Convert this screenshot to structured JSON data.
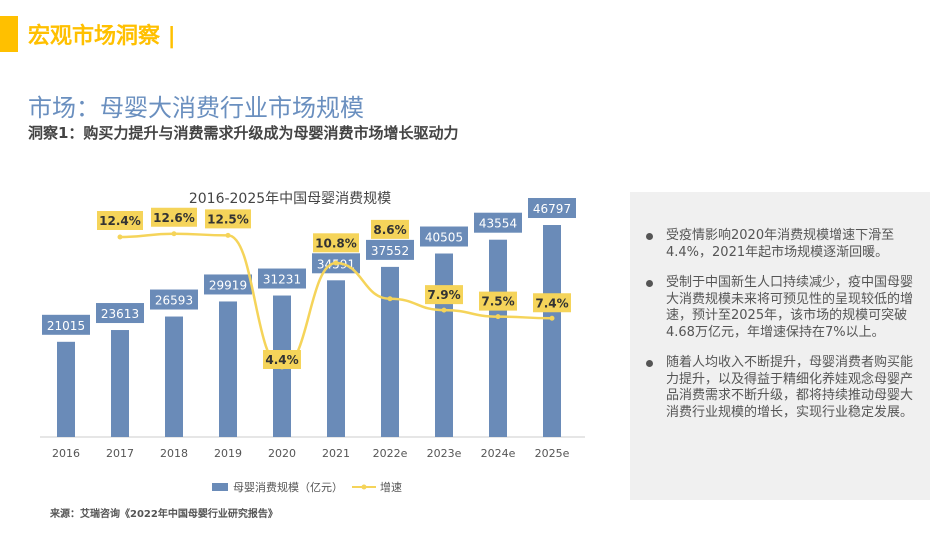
{
  "header": {
    "section": "宏观市场洞察 |",
    "title": "市场：母婴大消费行业市场规模",
    "subtitle": "洞察1：购买力提升与消费需求升级成为母婴消费市场增长驱动力"
  },
  "chart_data": {
    "type": "bar",
    "title": "2016-2025年中国母婴消费规模",
    "categories": [
      "2016",
      "2017",
      "2018",
      "2019",
      "2020",
      "2021",
      "2022e",
      "2023e",
      "2024e",
      "2025e"
    ],
    "series": [
      {
        "name": "母婴消费规模（亿元）",
        "type": "bar",
        "values": [
          21015,
          23613,
          26593,
          29919,
          31231,
          34591,
          37552,
          40505,
          43554,
          46797
        ],
        "color": "#6a8bb8"
      },
      {
        "name": "增速",
        "type": "line",
        "values": [
          null,
          12.4,
          12.6,
          12.5,
          4.4,
          10.8,
          8.6,
          7.9,
          7.5,
          7.4
        ],
        "labels": [
          "",
          "12.4%",
          "12.6%",
          "12.5%",
          "4.4%",
          "10.8%",
          "8.6%",
          "7.9%",
          "7.5%",
          "7.4%"
        ],
        "color": "#f5d45a"
      }
    ],
    "legend": "bottom",
    "grid": false
  },
  "insights": [
    "受疫情影响2020年消费规模增速下滑至4.4%，2021年起市场规模逐渐回暖。",
    "受制于中国新生人口持续减少，疫中国母婴大消费规模未来将可预见性的呈现较低的增速，预计至2025年，该市场的规模可突破4.68万亿元，年增速保持在7%以上。",
    "随着人均收入不断提升，母婴消费者购买能力提升，以及得益于精细化养娃观念母婴产品消费需求不断升级，都将持续推动母婴大消费行业规模的增长，实现行业稳定发展。"
  ],
  "source": "来源：艾瑞咨询《2022年中国母婴行业研究报告》"
}
